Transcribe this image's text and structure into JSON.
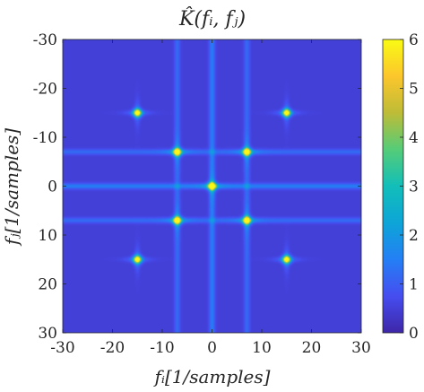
{
  "chart_data": {
    "type": "heatmap",
    "title": "K̂(fᵢ, fⱼ)",
    "xlabel": "fᵢ[1/samples]",
    "ylabel": "fⱼ[1/samples]",
    "xlim": [
      -30,
      30
    ],
    "ylim": [
      -30,
      30
    ],
    "y_reversed": true,
    "x_ticks": [
      "-30",
      "-20",
      "-10",
      "0",
      "10",
      "20",
      "30"
    ],
    "y_ticks": [
      "-30",
      "-20",
      "-10",
      "0",
      "10",
      "20",
      "30"
    ],
    "colorbar": {
      "range": [
        0,
        6
      ],
      "ticks": [
        "0",
        "1",
        "2",
        "3",
        "4",
        "5",
        "6"
      ],
      "colormap": "parula"
    },
    "background_value": 0.5,
    "peaks": [
      {
        "x": 0,
        "y": 0,
        "value": 6.0
      },
      {
        "x": -7,
        "y": -7,
        "value": 5.6
      },
      {
        "x": 7,
        "y": -7,
        "value": 5.6
      },
      {
        "x": -7,
        "y": 7,
        "value": 5.6
      },
      {
        "x": 7,
        "y": 7,
        "value": 5.6
      },
      {
        "x": -15,
        "y": -15,
        "value": 5.3
      },
      {
        "x": 15,
        "y": -15,
        "value": 5.3
      },
      {
        "x": -15,
        "y": 15,
        "value": 5.3
      },
      {
        "x": 15,
        "y": 15,
        "value": 5.3
      }
    ],
    "ridges": [
      {
        "orientation": "horizontal",
        "at": 0,
        "value": 1.5
      },
      {
        "orientation": "horizontal",
        "at": -7,
        "value": 1.2
      },
      {
        "orientation": "horizontal",
        "at": 7,
        "value": 1.2
      },
      {
        "orientation": "vertical",
        "at": 0,
        "value": 1.5
      },
      {
        "orientation": "vertical",
        "at": -7,
        "value": 1.2
      },
      {
        "orientation": "vertical",
        "at": 7,
        "value": 1.2
      }
    ]
  }
}
